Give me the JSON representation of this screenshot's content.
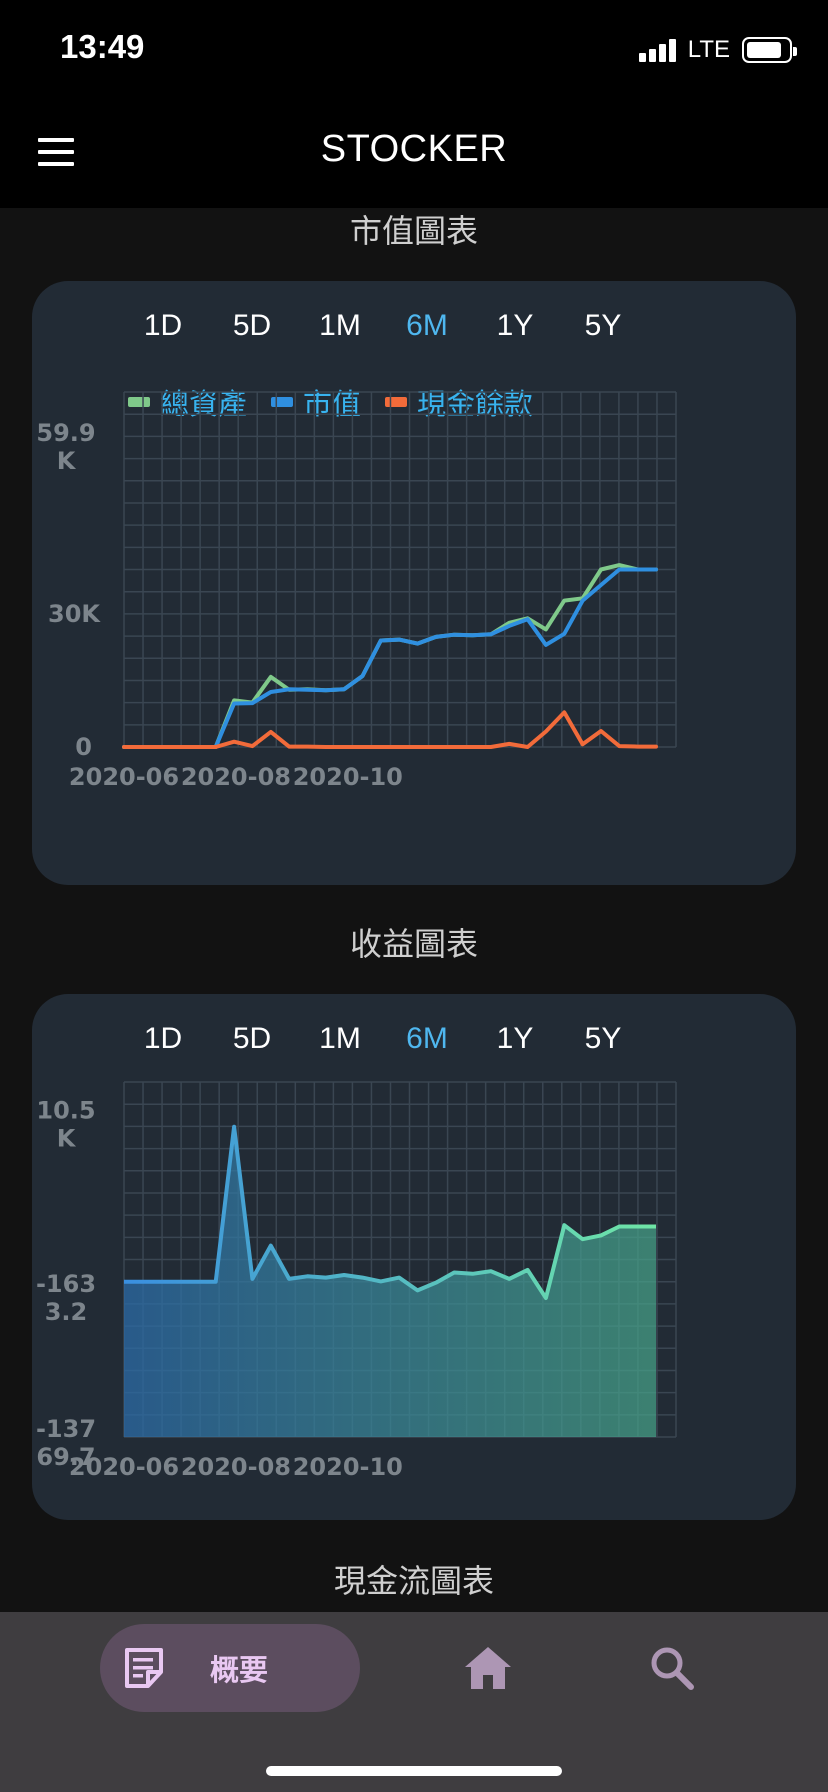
{
  "status_bar": {
    "time": "13:49",
    "network": "LTE"
  },
  "app_bar": {
    "title": "STOCKER"
  },
  "market_value_chart": {
    "section_title": "市值圖表",
    "ranges": [
      "1D",
      "5D",
      "1M",
      "6M",
      "1Y",
      "5Y"
    ],
    "active_range": "6M",
    "legend": [
      "總資產",
      "市值",
      "現金餘款"
    ]
  },
  "profit_chart": {
    "section_title": "收益圖表",
    "ranges": [
      "1D",
      "5D",
      "1M",
      "6M",
      "1Y",
      "5Y"
    ],
    "active_range": "6M"
  },
  "cashflow_chart": {
    "section_title": "現金流圖表"
  },
  "bottom_nav": {
    "items": [
      {
        "label": "概要",
        "icon": "summary-icon",
        "active": true
      },
      {
        "label": "",
        "icon": "home-icon",
        "active": false
      },
      {
        "label": "",
        "icon": "search-icon",
        "active": false
      }
    ]
  },
  "colors": {
    "total_assets": "#7fc98a",
    "market_value": "#2f8fe0",
    "cash_balance": "#f26b3a",
    "active_tab": "#4fb7ef",
    "card_bg": "#222b35",
    "nav_active_bg": "#5c4d5f"
  },
  "chart_data": [
    {
      "type": "line",
      "title": "市值圖表",
      "xlabel": "",
      "ylabel": "",
      "x_tick_labels": [
        "2020-06",
        "2020-08",
        "2020-10"
      ],
      "y_tick_labels": [
        "0",
        "30K",
        "59.9\nK"
      ],
      "ylim": [
        0,
        80000
      ],
      "grid": true,
      "legend_position": "top",
      "x": [
        "2020-06-01",
        "2020-06-11",
        "2020-06-21",
        "2020-07-01",
        "2020-07-11",
        "2020-07-21",
        "2020-07-31",
        "2020-08-10",
        "2020-08-20",
        "2020-08-30",
        "2020-09-09",
        "2020-09-19",
        "2020-09-29",
        "2020-10-09",
        "2020-10-19",
        "2020-10-29",
        "2020-11-08",
        "2020-11-18",
        "2020-11-28",
        "2020-12-08",
        "2020-12-18",
        "2020-12-28",
        "2021-01-07",
        "2021-01-17",
        "2021-01-27",
        "2021-02-06",
        "2021-02-16",
        "2021-02-26",
        "2021-03-08",
        "2021-03-18"
      ],
      "series": [
        {
          "name": "總資產",
          "values": [
            0,
            0,
            0,
            0,
            0,
            0,
            10500,
            10000,
            15800,
            12900,
            13000,
            12800,
            13000,
            16000,
            24000,
            24200,
            23300,
            24800,
            25300,
            25200,
            25400,
            28000,
            29000,
            26500,
            33000,
            33500,
            40000,
            41000,
            40000,
            40000
          ]
        },
        {
          "name": "市值",
          "values": [
            0,
            0,
            0,
            0,
            0,
            0,
            9800,
            9900,
            12400,
            13000,
            12900,
            12800,
            13000,
            16000,
            24000,
            24200,
            23300,
            24800,
            25300,
            25200,
            25400,
            27300,
            28800,
            23000,
            25500,
            33000,
            36500,
            40000,
            40000,
            40000
          ]
        },
        {
          "name": "現金餘款",
          "values": [
            0,
            0,
            0,
            0,
            0,
            0,
            1200,
            200,
            3400,
            100,
            100,
            0,
            0,
            0,
            0,
            0,
            0,
            0,
            0,
            0,
            0,
            700,
            0,
            3500,
            7800,
            600,
            3600,
            200,
            100,
            100
          ]
        }
      ]
    },
    {
      "type": "area",
      "title": "收益圖表",
      "xlabel": "",
      "ylabel": "",
      "x_tick_labels": [
        "2020-06",
        "2020-08",
        "2020-10"
      ],
      "y_tick_labels": [
        "-137\n69.7",
        "-163\n3.2",
        "10.5\nK"
      ],
      "ylim": [
        -13769.7,
        14000
      ],
      "grid": true,
      "x": [
        "2020-06-01",
        "2020-06-11",
        "2020-06-21",
        "2020-07-01",
        "2020-07-11",
        "2020-07-21",
        "2020-07-31",
        "2020-08-10",
        "2020-08-20",
        "2020-08-30",
        "2020-09-09",
        "2020-09-19",
        "2020-09-29",
        "2020-10-09",
        "2020-10-19",
        "2020-10-29",
        "2020-11-08",
        "2020-11-18",
        "2020-11-28",
        "2020-12-08",
        "2020-12-18",
        "2020-12-28",
        "2021-01-07",
        "2021-01-17",
        "2021-01-27",
        "2021-02-06",
        "2021-02-16",
        "2021-02-26",
        "2021-03-08",
        "2021-03-18"
      ],
      "series": [
        {
          "name": "",
          "values": [
            -1633,
            -1633,
            -1633,
            -1633,
            -1633,
            -1633,
            10500,
            -1400,
            1200,
            -1400,
            -1200,
            -1300,
            -1100,
            -1300,
            -1600,
            -1300,
            -2300,
            -1700,
            -900,
            -1000,
            -800,
            -1400,
            -700,
            -2900,
            2800,
            1700,
            2000,
            2700,
            2700,
            2700
          ]
        }
      ]
    }
  ]
}
